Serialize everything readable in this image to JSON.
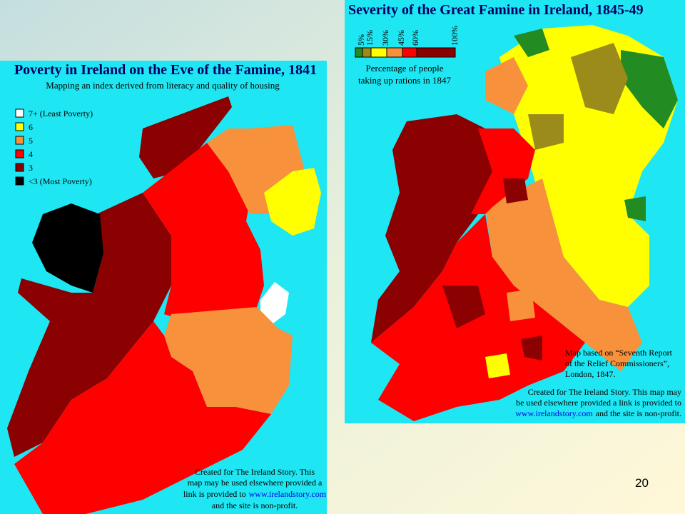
{
  "left_map": {
    "title": "Poverty in Ireland on the Eve of the Famine, 1841",
    "subtitle": "Mapping an index derived from literacy and quality of housing",
    "legend": [
      "7+ (Least Poverty)",
      "6",
      "5",
      "4",
      "3",
      "<3 (Most Poverty)"
    ],
    "credit": [
      {
        "text": "Created for The Ireland Story. This"
      },
      {
        "text": "map may be used elsewhere provided a"
      },
      {
        "text": "link is provided to",
        "link": "www.irelandstory.com"
      },
      {
        "text": "and the site is non-profit."
      }
    ]
  },
  "right_map": {
    "title": "Severity of the Great Famine in Ireland, 1845-49",
    "legend_ticks": [
      "5%",
      "15%",
      "30%",
      "45%",
      "60%",
      "100%"
    ],
    "legend_caption": [
      "Percentage of people",
      "taking up rations in 1847"
    ],
    "source": [
      "Map based on “Seventh Report",
      "of the Relief Commissioners”,",
      "London, 1847."
    ],
    "credit": [
      {
        "text": "Created for The Ireland Story. This map may"
      },
      {
        "text": "be used elsewhere provided a link is provided to"
      },
      {
        "link": "www.irelandstory.com",
        "text": "and the site is non-profit."
      }
    ]
  },
  "page_number": "20"
}
